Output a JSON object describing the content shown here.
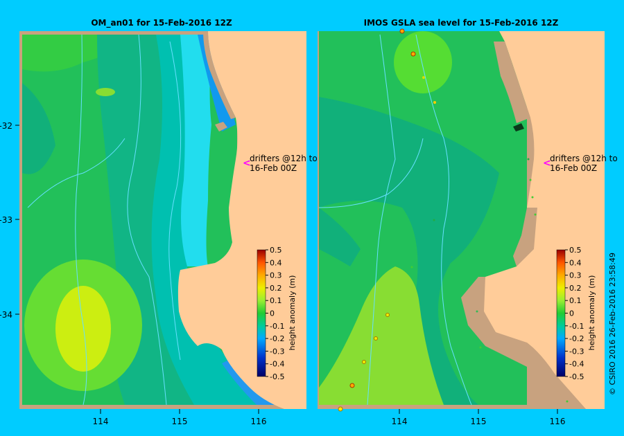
{
  "panels": [
    {
      "title": "OM_an01  for 15-Feb-2016 12Z",
      "drifter_note": [
        "drifters @12h to",
        "16-Feb 00Z"
      ],
      "x_ticks": [
        "114",
        "115",
        "116"
      ],
      "y_ticks": [
        "-32",
        "-33",
        "-34"
      ]
    },
    {
      "title": "IMOS GSLA sea level  for 15-Feb-2016 12Z",
      "drifter_note": [
        "drifters @12h to",
        "16-Feb 00Z"
      ],
      "x_ticks": [
        "114",
        "115",
        "116"
      ],
      "y_ticks": []
    }
  ],
  "colorbar": {
    "label": "height anomaly (m)",
    "ticks": [
      "0.5",
      "0.4",
      "0.3",
      "0.2",
      "0.1",
      "0",
      "-0.1",
      "-0.2",
      "-0.3",
      "-0.4",
      "-0.5"
    ]
  },
  "credit": "© CSIRO 2016   26-Feb-2016 23:58:49",
  "colors": {
    "background": "#00ccff",
    "land": "#ffcc99",
    "shelf": "#c8a27f",
    "contour": "#66e0ff",
    "drifter": "#ff00ff"
  },
  "chart_data": [
    {
      "type": "heatmap",
      "title": "OM_an01  for 15-Feb-2016 12Z",
      "xlabel": "",
      "ylabel": "",
      "x_ticks": [
        114,
        115,
        116
      ],
      "y_ticks": [
        -32,
        -33,
        -34
      ],
      "colorbar_label": "height anomaly (m)",
      "colorbar_range": [
        -0.5,
        0.5
      ],
      "colorbar_ticks": [
        0.5,
        0.4,
        0.3,
        0.2,
        0.1,
        0,
        -0.1,
        -0.2,
        -0.3,
        -0.4,
        -0.5
      ]
    },
    {
      "type": "heatmap",
      "title": "IMOS GSLA sea level  for 15-Feb-2016 12Z",
      "xlabel": "",
      "ylabel": "",
      "x_ticks": [
        114,
        115,
        116
      ],
      "colorbar_label": "height anomaly (m)",
      "colorbar_range": [
        -0.5,
        0.5
      ],
      "colorbar_ticks": [
        0.5,
        0.4,
        0.3,
        0.2,
        0.1,
        0,
        -0.1,
        -0.2,
        -0.3,
        -0.4,
        -0.5
      ]
    }
  ]
}
